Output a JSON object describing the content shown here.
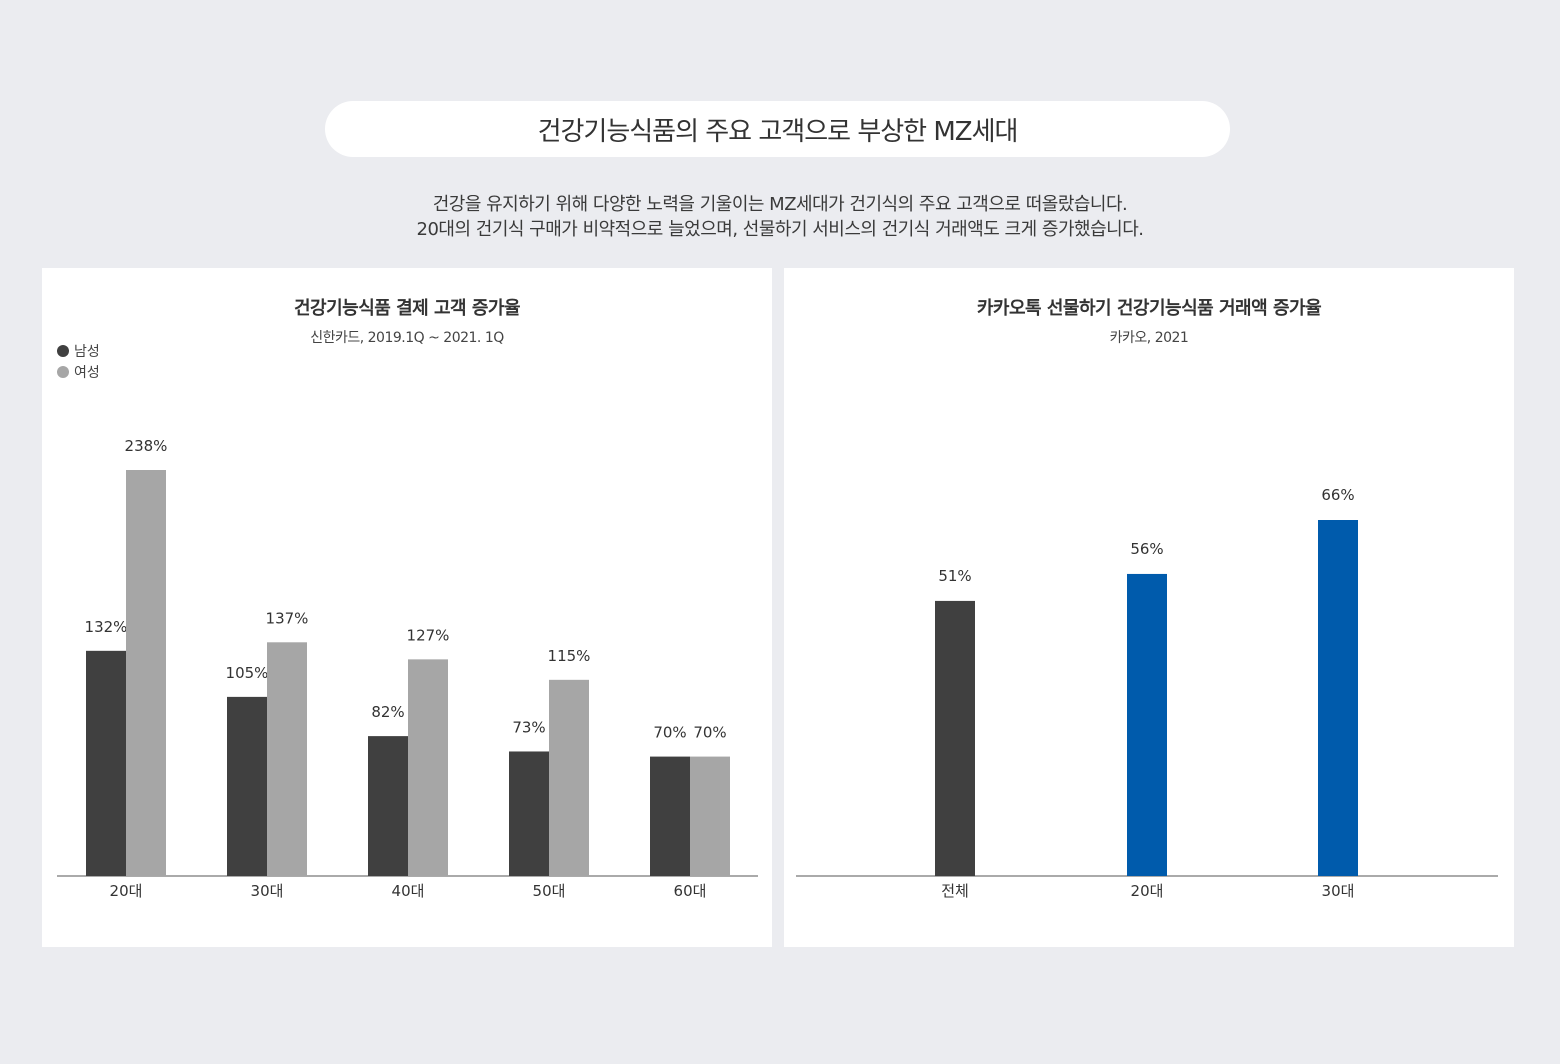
{
  "header": {
    "title": "건강기능식품의 주요 고객으로 부상한 MZ세대",
    "subtitle_lines": [
      "건강을 유지하기 위해 다양한 노력을 기울이는 MZ세대가 건기식의 주요 고객으로 떠올랐습니다.",
      "20대의 건기식 구매가 비약적으로 늘었으며, 선물하기 서비스의 건기식 거래액도 크게 증가했습니다."
    ]
  },
  "chart_data": [
    {
      "type": "bar",
      "title": "건강기능식품 결제 고객 증가율",
      "subtitle": "신한카드, 2019.1Q ~ 2021. 1Q",
      "categories": [
        "20대",
        "30대",
        "40대",
        "50대",
        "60대"
      ],
      "series": [
        {
          "name": "남성",
          "color": "#404040",
          "values": [
            132,
            105,
            82,
            73,
            70
          ],
          "labels": [
            "132%",
            "105%",
            "82%",
            "73%",
            "70%"
          ]
        },
        {
          "name": "여성",
          "color": "#a6a6a6",
          "values": [
            238,
            137,
            127,
            115,
            70
          ],
          "labels": [
            "238%",
            "137%",
            "127%",
            "115%",
            "70%"
          ]
        }
      ],
      "ylim": [
        0,
        250
      ],
      "grid": false,
      "legend": "top-left"
    },
    {
      "type": "bar",
      "title": "카카오톡 선물하기 건강기능식품 거래액 증가율",
      "subtitle": "카카오, 2021",
      "categories": [
        "전체",
        "20대",
        "30대"
      ],
      "values": [
        51,
        56,
        66
      ],
      "labels": [
        "51%",
        "56%",
        "66%"
      ],
      "colors": [
        "#404040",
        "#005bac",
        "#005bac"
      ],
      "ylim": [
        0,
        75
      ],
      "grid": false
    }
  ]
}
